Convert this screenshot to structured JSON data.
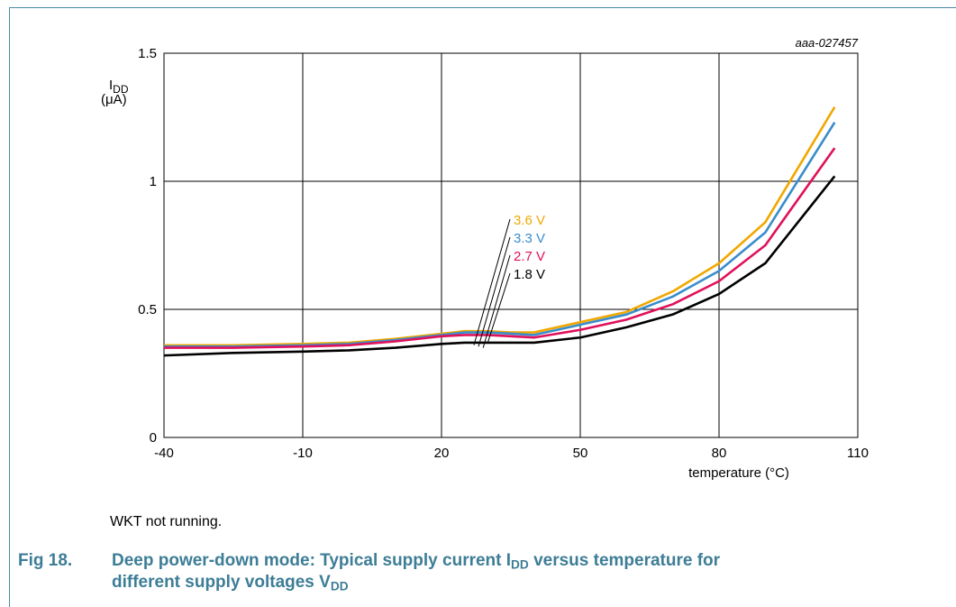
{
  "figure": {
    "code": "aaa-027457",
    "note": "WKT not running.",
    "caption_number": "Fig 18.",
    "caption_part1": "Deep power-down mode: Typical supply current I",
    "caption_sub1": "DD",
    "caption_part2": " versus temperature for",
    "caption_part3": "different supply voltages V",
    "caption_sub2": "DD"
  },
  "chart_data": {
    "type": "line",
    "xlabel": "temperature (°C)",
    "ylabel_main": "I",
    "ylabel_sub": "DD",
    "ylabel_unit": "(μA)",
    "xlim": [
      -40,
      110
    ],
    "ylim": [
      0,
      1.5
    ],
    "x_ticks": [
      "-40",
      "-10",
      "20",
      "50",
      "80",
      "110"
    ],
    "y_ticks": [
      "0",
      "0.5",
      "1",
      "1.5"
    ],
    "grid": true,
    "x": [
      -40,
      -25,
      -10,
      0,
      10,
      20,
      25,
      30,
      35,
      40,
      50,
      60,
      70,
      80,
      90,
      105
    ],
    "series": [
      {
        "name": "3.6 V",
        "color": "#f0a800",
        "label_x": 27,
        "values": [
          0.36,
          0.36,
          0.365,
          0.37,
          0.385,
          0.405,
          0.415,
          0.415,
          0.41,
          0.41,
          0.45,
          0.49,
          0.57,
          0.68,
          0.84,
          1.29
        ]
      },
      {
        "name": "3.3 V",
        "color": "#3a8ccc",
        "label_x": 28,
        "values": [
          0.355,
          0.355,
          0.36,
          0.365,
          0.38,
          0.4,
          0.41,
          0.41,
          0.405,
          0.4,
          0.44,
          0.48,
          0.55,
          0.65,
          0.8,
          1.23
        ]
      },
      {
        "name": "2.7 V",
        "color": "#e0105a",
        "label_x": 29,
        "values": [
          0.35,
          0.35,
          0.355,
          0.36,
          0.375,
          0.395,
          0.4,
          0.4,
          0.395,
          0.39,
          0.42,
          0.46,
          0.52,
          0.61,
          0.75,
          1.13
        ]
      },
      {
        "name": "1.8 V",
        "color": "#000000",
        "label_x": 30,
        "values": [
          0.32,
          0.33,
          0.335,
          0.34,
          0.35,
          0.365,
          0.37,
          0.37,
          0.37,
          0.37,
          0.39,
          0.43,
          0.48,
          0.56,
          0.68,
          1.02
        ]
      }
    ]
  }
}
